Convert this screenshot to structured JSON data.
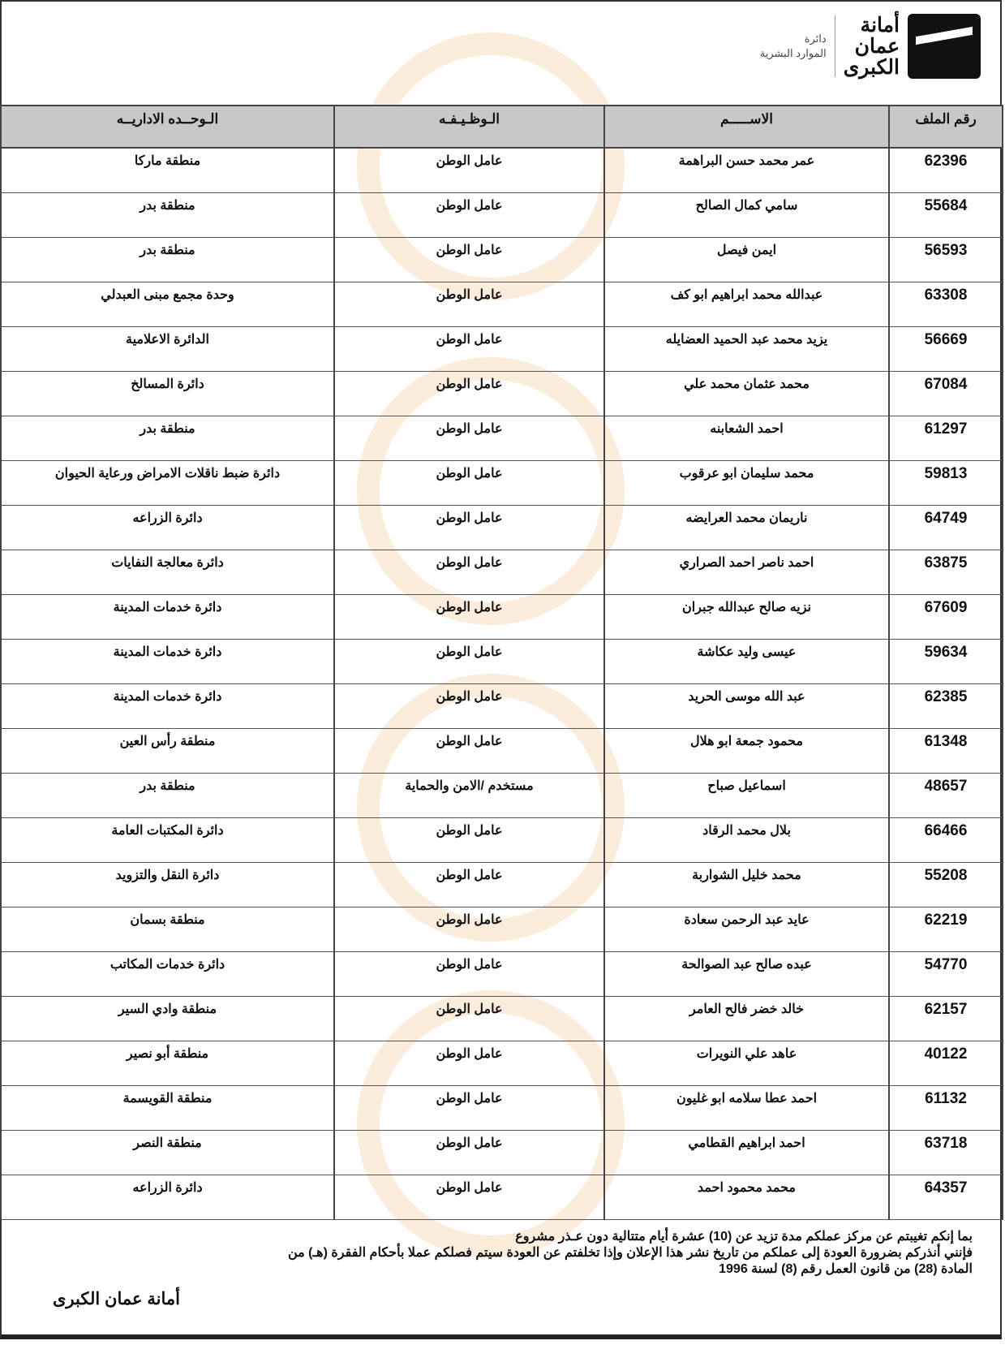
{
  "header": {
    "logo_title_lines": [
      "أمانة",
      "عمان",
      "الكبرى"
    ],
    "department_lines": [
      "دائرة",
      "الموارد البشرية"
    ]
  },
  "table": {
    "columns": [
      "رقم الملف",
      "الاســـــم",
      "الـوظـيـفـه",
      "الـوحــده الاداريــه"
    ],
    "rows": [
      [
        "62396",
        "عمر محمد حسن البراهمة",
        "عامل الوطن",
        "منطقة ماركا"
      ],
      [
        "55684",
        "سامي كمال الصالح",
        "عامل الوطن",
        "منطقة بدر"
      ],
      [
        "56593",
        "ايمن فيصل",
        "عامل الوطن",
        "منطقة بدر"
      ],
      [
        "63308",
        "عبدالله محمد ابراهيم ابو كف",
        "عامل الوطن",
        "وحدة مجمع مبنى العبدلي"
      ],
      [
        "56669",
        "يزيد محمد عبد الحميد العضايله",
        "عامل الوطن",
        "الدائرة الاعلامية"
      ],
      [
        "67084",
        "محمد عثمان محمد علي",
        "عامل الوطن",
        "دائرة المسالخ"
      ],
      [
        "61297",
        "احمد الشعابنه",
        "عامل الوطن",
        "منطقة بدر"
      ],
      [
        "59813",
        "محمد سليمان ابو عرقوب",
        "عامل الوطن",
        "دائرة ضبط ناقلات الامراض ورعاية الحيوان"
      ],
      [
        "64749",
        "ناريمان محمد العرايضه",
        "عامل الوطن",
        "دائرة الزراعه"
      ],
      [
        "63875",
        "احمد ناصر احمد الصراري",
        "عامل الوطن",
        "دائرة معالجة النفايات"
      ],
      [
        "67609",
        "نزيه صالح عبدالله جبران",
        "عامل الوطن",
        "دائرة خدمات المدينة"
      ],
      [
        "59634",
        "عيسى وليد عكاشة",
        "عامل الوطن",
        "دائرة خدمات المدينة"
      ],
      [
        "62385",
        "عبد الله موسى الحريد",
        "عامل الوطن",
        "دائرة خدمات المدينة"
      ],
      [
        "61348",
        "محمود جمعة ابو هلال",
        "عامل الوطن",
        "منطقة رأس العين"
      ],
      [
        "48657",
        "اسماعيل صباح",
        "مستخدم /الامن والحماية",
        "منطقة بدر"
      ],
      [
        "66466",
        "بلال محمد الرقاد",
        "عامل الوطن",
        "دائرة المكتبات العامة"
      ],
      [
        "55208",
        "محمد خليل الشواربة",
        "عامل الوطن",
        "دائرة النقل والتزويد"
      ],
      [
        "62219",
        "عايد عبد الرحمن سعادة",
        "عامل الوطن",
        "منطقة بسمان"
      ],
      [
        "54770",
        "عبده صالح عبد الصوالحة",
        "عامل الوطن",
        "دائرة خدمات المكاتب"
      ],
      [
        "62157",
        "خالد خضر فالح العامر",
        "عامل الوطن",
        "منطقة وادي السير"
      ],
      [
        "40122",
        "عاهد علي النويرات",
        "عامل الوطن",
        "منطقة أبو نصير"
      ],
      [
        "61132",
        "احمد عطا سلامه ابو غليون",
        "عامل الوطن",
        "منطقة القويسمة"
      ],
      [
        "63718",
        "احمد ابراهيم القطامي",
        "عامل الوطن",
        "منطقة النصر"
      ],
      [
        "64357",
        "محمد محمود احمد",
        "عامل الوطن",
        "دائرة الزراعه"
      ]
    ]
  },
  "footer": {
    "lines": [
      "بما إنكم تغيبتم عن مركز عملكم مدة تزيد عن (10) عشرة أيام متتالية دون عـذر مشروع",
      "فإنني أنذركم بضرورة العودة إلى عملكم من تاريخ نشر هذا الإعلان وإذا تخلفتم عن العودة سيتم فصلكم عملا بأحكام الفقرة (هـ) من",
      "المادة (28) من قانون العمل رقم (8) لسنة 1996"
    ],
    "signature": "أمانة عمان الكبرى"
  },
  "colors": {
    "header_bg": "#c8c8c8",
    "border": "#444444"
  }
}
